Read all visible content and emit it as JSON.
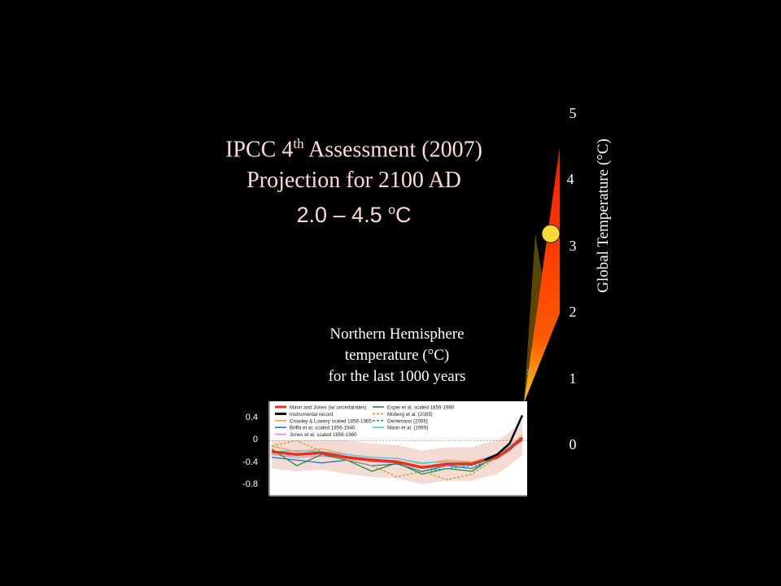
{
  "title": {
    "line1_prefix": "IPCC 4",
    "line1_sup": "th",
    "line1_suffix": " Assessment  (2007)",
    "line2": "Projection for 2100 AD",
    "range_value": "2.0 – 4.5 ",
    "range_sup": "o",
    "range_unit": "C"
  },
  "projection_chart": {
    "type": "area",
    "ylabel": "Global  Temperature (°C)",
    "ticks": [
      "5",
      "4",
      "3",
      "2",
      "1",
      "0"
    ],
    "tick_values": [
      5,
      4,
      3,
      2,
      1,
      0
    ],
    "ylim": [
      0,
      5
    ],
    "range_low": 2.0,
    "range_high": 4.5,
    "central_estimate": 3.2,
    "marker_label": "x",
    "colors": {
      "fan_top": "#ff1a00",
      "fan_bottom": "#ffcc00",
      "marker": "#ffd93a"
    }
  },
  "caption": {
    "line1": "Northern Hemisphere",
    "line2": "temperature (°C)",
    "line3": "for the last 1000 years"
  },
  "chart_data": {
    "type": "line",
    "title": "",
    "x": [
      1000,
      1100,
      1200,
      1300,
      1400,
      1500,
      1600,
      1700,
      1800,
      1850,
      1900,
      1950,
      2000
    ],
    "xlim": [
      1000,
      2000
    ],
    "ylim": [
      -1.0,
      0.6
    ],
    "yticks": [
      "0.4",
      "0",
      "-0.4",
      "-0.8"
    ],
    "ytick_values": [
      0.4,
      0,
      -0.4,
      -0.8
    ],
    "series": [
      {
        "name": "Mann and Jones (w/ uncertainties)",
        "color": "#e8321e",
        "values": [
          -0.2,
          -0.25,
          -0.22,
          -0.3,
          -0.35,
          -0.38,
          -0.48,
          -0.42,
          -0.42,
          -0.35,
          -0.3,
          -0.15,
          0.05
        ]
      },
      {
        "name": "Instrumental record",
        "color": "#000000",
        "values": [
          null,
          null,
          null,
          null,
          null,
          null,
          null,
          null,
          null,
          -0.35,
          -0.25,
          -0.05,
          0.45
        ]
      },
      {
        "name": "Crowley & Lowery scaled 1856-1965",
        "color": "#f7a23a",
        "values": [
          -0.1,
          -0.2,
          -0.15,
          -0.25,
          -0.3,
          -0.32,
          -0.42,
          -0.35,
          -0.38,
          -0.32,
          -0.28,
          -0.12,
          0.05
        ]
      },
      {
        "name": "Briffa et al. scaled 1856-1940",
        "color": "#1c7bd0",
        "values": [
          -0.3,
          -0.35,
          -0.4,
          -0.35,
          -0.45,
          -0.42,
          -0.55,
          -0.45,
          -0.5,
          -0.4,
          -0.3,
          -0.15,
          0.0
        ]
      },
      {
        "name": "Jones et al. scaled 1856-1980",
        "color": "#d98ac8",
        "values": [
          -0.25,
          -0.3,
          -0.28,
          -0.32,
          -0.38,
          -0.4,
          -0.5,
          -0.45,
          -0.4,
          -0.35,
          -0.3,
          -0.12,
          0.02
        ]
      },
      {
        "name": "Esper et al. scaled 1856-1980",
        "color": "#2a8c3a",
        "values": [
          -0.15,
          -0.45,
          -0.25,
          -0.35,
          -0.55,
          -0.4,
          -0.6,
          -0.5,
          -0.55,
          -0.4,
          -0.3,
          -0.1,
          0.05
        ]
      },
      {
        "name": "Moberg et al. (2005)",
        "color": "#c79a2a",
        "values": [
          -0.1,
          0.0,
          -0.2,
          -0.35,
          -0.45,
          -0.65,
          -0.55,
          -0.7,
          -0.6,
          -0.45,
          -0.3,
          -0.1,
          0.1
        ]
      },
      {
        "name": "Oerlemans (2005)",
        "color": "#1aa9a0",
        "values": [
          null,
          null,
          null,
          null,
          null,
          null,
          -0.55,
          -0.5,
          -0.45,
          -0.4,
          -0.3,
          -0.15,
          0.0
        ]
      },
      {
        "name": "Mann et al. (1999)",
        "color": "#4fc6e8",
        "values": [
          -0.2,
          -0.18,
          -0.2,
          -0.25,
          -0.3,
          -0.32,
          -0.4,
          -0.38,
          -0.4,
          -0.32,
          -0.25,
          -0.1,
          0.05
        ]
      }
    ]
  }
}
